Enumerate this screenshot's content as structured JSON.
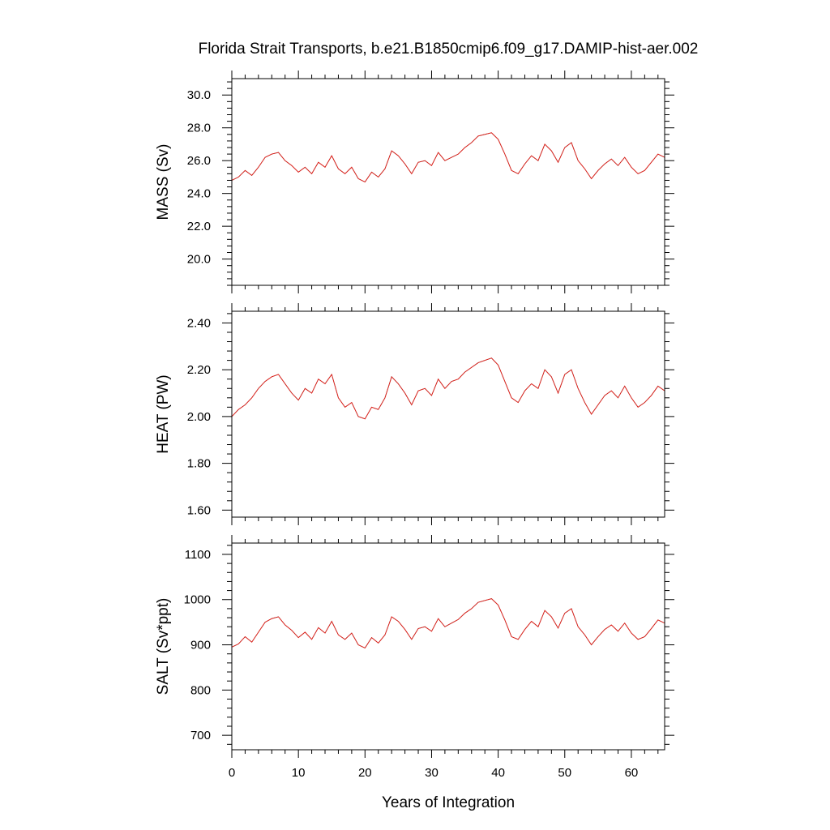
{
  "title": "Florida Strait Transports, b.e21.B1850cmip6.f09_g17.DAMIP-hist-aer.002",
  "xlabel": "Years of Integration",
  "x_ticks": [
    "0",
    "10",
    "20",
    "30",
    "40",
    "50",
    "60"
  ],
  "colors": {
    "raw": "#1a1a1a",
    "smooth": "#e8231c"
  },
  "chart_data": [
    {
      "type": "line",
      "ylabel": "MASS (Sv)",
      "xlim": [
        0,
        65
      ],
      "ylim": [
        18.4,
        31.0
      ],
      "y_ticks": [
        20.0,
        22.0,
        24.0,
        26.0,
        28.0,
        30.0
      ],
      "y_tick_labels": [
        "20.0",
        "22.0",
        "24.0",
        "26.0",
        "28.0",
        "30.0"
      ],
      "series": [
        {
          "role": "monthly",
          "x": [
            0,
            1,
            2,
            3,
            4,
            5,
            6,
            7,
            8,
            9,
            10,
            11,
            12,
            13,
            14,
            15,
            16,
            17,
            18,
            19,
            20,
            21,
            22,
            23,
            24,
            25,
            26,
            27,
            28,
            29,
            30,
            31,
            32,
            33,
            34,
            35,
            36,
            37,
            38,
            39,
            40,
            41,
            42,
            43,
            44,
            45,
            46,
            47,
            48,
            49,
            50,
            51,
            52,
            53,
            54,
            55,
            56,
            57,
            58,
            59,
            60,
            61,
            62,
            63,
            64,
            65
          ],
          "y": [
            24.8,
            25.0,
            25.4,
            25.1,
            25.6,
            26.2,
            26.4,
            26.5,
            26.0,
            25.7,
            25.3,
            25.6,
            25.2,
            25.9,
            25.6,
            26.3,
            25.5,
            25.2,
            25.6,
            24.9,
            24.7,
            25.3,
            25.0,
            25.5,
            26.6,
            26.3,
            25.8,
            25.2,
            25.9,
            26.0,
            25.7,
            26.5,
            26.0,
            26.2,
            26.4,
            26.8,
            27.1,
            27.5,
            27.6,
            27.7,
            27.3,
            26.4,
            25.4,
            25.2,
            25.8,
            26.3,
            26.0,
            27.0,
            26.6,
            25.9,
            26.8,
            27.1,
            26.0,
            25.5,
            24.9,
            25.4,
            25.8,
            26.1,
            25.7,
            26.2,
            25.6,
            25.2,
            25.4,
            25.9,
            26.4,
            26.2
          ]
        },
        {
          "role": "smoothed",
          "x": [
            0,
            1,
            2,
            3,
            4,
            5,
            6,
            7,
            8,
            9,
            10,
            11,
            12,
            13,
            14,
            15,
            16,
            17,
            18,
            19,
            20,
            21,
            22,
            23,
            24,
            25,
            26,
            27,
            28,
            29,
            30,
            31,
            32,
            33,
            34,
            35,
            36,
            37,
            38,
            39,
            40,
            41,
            42,
            43,
            44,
            45,
            46,
            47,
            48,
            49,
            50,
            51,
            52,
            53,
            54,
            55,
            56,
            57,
            58,
            59,
            60,
            61,
            62,
            63,
            64,
            65
          ],
          "y": [
            24.8,
            25.0,
            25.4,
            25.1,
            25.6,
            26.2,
            26.4,
            26.5,
            26.0,
            25.7,
            25.3,
            25.6,
            25.2,
            25.9,
            25.6,
            26.3,
            25.5,
            25.2,
            25.6,
            24.9,
            24.7,
            25.3,
            25.0,
            25.5,
            26.6,
            26.3,
            25.8,
            25.2,
            25.9,
            26.0,
            25.7,
            26.5,
            26.0,
            26.2,
            26.4,
            26.8,
            27.1,
            27.5,
            27.6,
            27.7,
            27.3,
            26.4,
            25.4,
            25.2,
            25.8,
            26.3,
            26.0,
            27.0,
            26.6,
            25.9,
            26.8,
            27.1,
            26.0,
            25.5,
            24.9,
            25.4,
            25.8,
            26.1,
            25.7,
            26.2,
            25.6,
            25.2,
            25.4,
            25.9,
            26.4,
            26.2
          ]
        }
      ]
    },
    {
      "type": "line",
      "ylabel": "HEAT (PW)",
      "xlim": [
        0,
        65
      ],
      "ylim": [
        1.57,
        2.45
      ],
      "y_ticks": [
        1.6,
        1.8,
        2.0,
        2.2,
        2.4
      ],
      "y_tick_labels": [
        "1.60",
        "1.80",
        "2.00",
        "2.20",
        "2.40"
      ],
      "series": [
        {
          "role": "monthly",
          "x": [
            0,
            1,
            2,
            3,
            4,
            5,
            6,
            7,
            8,
            9,
            10,
            11,
            12,
            13,
            14,
            15,
            16,
            17,
            18,
            19,
            20,
            21,
            22,
            23,
            24,
            25,
            26,
            27,
            28,
            29,
            30,
            31,
            32,
            33,
            34,
            35,
            36,
            37,
            38,
            39,
            40,
            41,
            42,
            43,
            44,
            45,
            46,
            47,
            48,
            49,
            50,
            51,
            52,
            53,
            54,
            55,
            56,
            57,
            58,
            59,
            60,
            61,
            62,
            63,
            64,
            65
          ],
          "y": [
            2.0,
            2.03,
            2.05,
            2.08,
            2.12,
            2.15,
            2.17,
            2.18,
            2.14,
            2.1,
            2.07,
            2.12,
            2.1,
            2.16,
            2.14,
            2.18,
            2.08,
            2.04,
            2.06,
            2.0,
            1.99,
            2.04,
            2.03,
            2.08,
            2.17,
            2.14,
            2.1,
            2.05,
            2.11,
            2.12,
            2.09,
            2.16,
            2.12,
            2.15,
            2.16,
            2.19,
            2.21,
            2.23,
            2.24,
            2.25,
            2.22,
            2.15,
            2.08,
            2.06,
            2.11,
            2.14,
            2.12,
            2.2,
            2.17,
            2.1,
            2.18,
            2.2,
            2.12,
            2.06,
            2.01,
            2.05,
            2.09,
            2.11,
            2.08,
            2.13,
            2.08,
            2.04,
            2.06,
            2.09,
            2.13,
            2.11
          ]
        },
        {
          "role": "smoothed",
          "x": [
            0,
            1,
            2,
            3,
            4,
            5,
            6,
            7,
            8,
            9,
            10,
            11,
            12,
            13,
            14,
            15,
            16,
            17,
            18,
            19,
            20,
            21,
            22,
            23,
            24,
            25,
            26,
            27,
            28,
            29,
            30,
            31,
            32,
            33,
            34,
            35,
            36,
            37,
            38,
            39,
            40,
            41,
            42,
            43,
            44,
            45,
            46,
            47,
            48,
            49,
            50,
            51,
            52,
            53,
            54,
            55,
            56,
            57,
            58,
            59,
            60,
            61,
            62,
            63,
            64,
            65
          ],
          "y": [
            2.0,
            2.03,
            2.05,
            2.08,
            2.12,
            2.15,
            2.17,
            2.18,
            2.14,
            2.1,
            2.07,
            2.12,
            2.1,
            2.16,
            2.14,
            2.18,
            2.08,
            2.04,
            2.06,
            2.0,
            1.99,
            2.04,
            2.03,
            2.08,
            2.17,
            2.14,
            2.1,
            2.05,
            2.11,
            2.12,
            2.09,
            2.16,
            2.12,
            2.15,
            2.16,
            2.19,
            2.21,
            2.23,
            2.24,
            2.25,
            2.22,
            2.15,
            2.08,
            2.06,
            2.11,
            2.14,
            2.12,
            2.2,
            2.17,
            2.1,
            2.18,
            2.2,
            2.12,
            2.06,
            2.01,
            2.05,
            2.09,
            2.11,
            2.08,
            2.13,
            2.08,
            2.04,
            2.06,
            2.09,
            2.13,
            2.11
          ]
        }
      ]
    },
    {
      "type": "line",
      "ylabel": "SALT (Sv*ppt)",
      "xlim": [
        0,
        65
      ],
      "ylim": [
        668,
        1125
      ],
      "y_ticks": [
        700,
        800,
        900,
        1000,
        1100
      ],
      "y_tick_labels": [
        "700",
        "800",
        "900",
        "1000",
        "1100"
      ],
      "series": [
        {
          "role": "monthly",
          "x": [
            0,
            1,
            2,
            3,
            4,
            5,
            6,
            7,
            8,
            9,
            10,
            11,
            12,
            13,
            14,
            15,
            16,
            17,
            18,
            19,
            20,
            21,
            22,
            23,
            24,
            25,
            26,
            27,
            28,
            29,
            30,
            31,
            32,
            33,
            34,
            35,
            36,
            37,
            38,
            39,
            40,
            41,
            42,
            43,
            44,
            45,
            46,
            47,
            48,
            49,
            50,
            51,
            52,
            53,
            54,
            55,
            56,
            57,
            58,
            59,
            60,
            61,
            62,
            63,
            64,
            65
          ],
          "y": [
            895,
            902,
            918,
            906,
            928,
            950,
            958,
            962,
            944,
            932,
            916,
            928,
            912,
            938,
            926,
            952,
            922,
            912,
            926,
            900,
            893,
            916,
            904,
            922,
            962,
            952,
            934,
            912,
            936,
            940,
            930,
            958,
            940,
            948,
            956,
            970,
            980,
            994,
            998,
            1002,
            988,
            955,
            918,
            912,
            934,
            952,
            940,
            976,
            962,
            937,
            970,
            980,
            940,
            922,
            900,
            918,
            934,
            944,
            930,
            948,
            926,
            912,
            918,
            936,
            955,
            948
          ]
        },
        {
          "role": "smoothed",
          "x": [
            0,
            1,
            2,
            3,
            4,
            5,
            6,
            7,
            8,
            9,
            10,
            11,
            12,
            13,
            14,
            15,
            16,
            17,
            18,
            19,
            20,
            21,
            22,
            23,
            24,
            25,
            26,
            27,
            28,
            29,
            30,
            31,
            32,
            33,
            34,
            35,
            36,
            37,
            38,
            39,
            40,
            41,
            42,
            43,
            44,
            45,
            46,
            47,
            48,
            49,
            50,
            51,
            52,
            53,
            54,
            55,
            56,
            57,
            58,
            59,
            60,
            61,
            62,
            63,
            64,
            65
          ],
          "y": [
            895,
            902,
            918,
            906,
            928,
            950,
            958,
            962,
            944,
            932,
            916,
            928,
            912,
            938,
            926,
            952,
            922,
            912,
            926,
            900,
            893,
            916,
            904,
            922,
            962,
            952,
            934,
            912,
            936,
            940,
            930,
            958,
            940,
            948,
            956,
            970,
            980,
            994,
            998,
            1002,
            988,
            955,
            918,
            912,
            934,
            952,
            940,
            976,
            962,
            937,
            970,
            980,
            940,
            922,
            900,
            918,
            934,
            944,
            930,
            948,
            926,
            912,
            918,
            936,
            955,
            948
          ]
        }
      ]
    }
  ]
}
